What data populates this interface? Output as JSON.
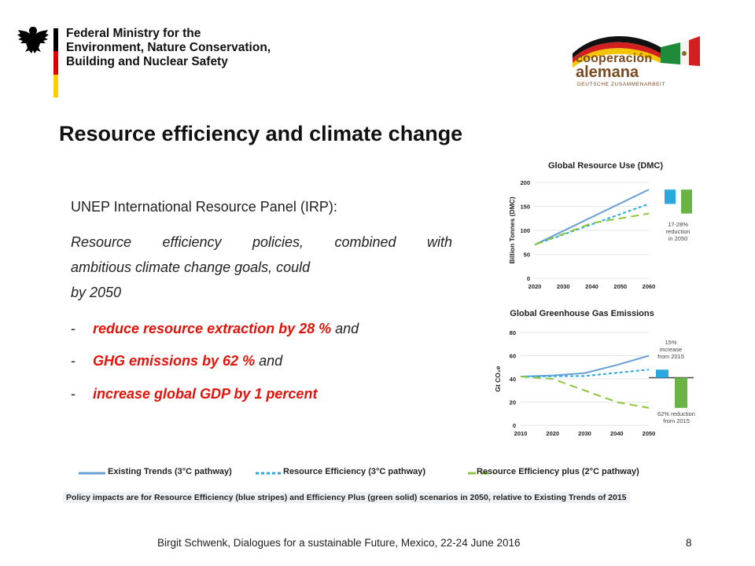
{
  "header": {
    "ministry_lines": [
      "Federal Ministry for the",
      "Environment, Nature Conservation,",
      "Building and Nuclear Safety"
    ],
    "coop_logo": {
      "line1": "cooperación",
      "line2": "alemana",
      "line3": "DEUTSCHE ZUSAMMENARBEIT"
    },
    "flag_colors": [
      "#000000",
      "#dd0000",
      "#ffce00"
    ]
  },
  "slide": {
    "title": "Resource efficiency and climate change",
    "intro": "UNEP International Resource Panel (IRP):",
    "para_line1_words": [
      "Resource",
      "efficiency",
      "policies,",
      "combined",
      "with"
    ],
    "para_line2": "ambitious climate change goals, could",
    "para_line3": "by 2050",
    "bullets": [
      {
        "dash": "-",
        "highlight": "reduce resource extraction by 28 %",
        "rest": " and"
      },
      {
        "dash": "-",
        "highlight": "GHG emissions by 62 %",
        "rest": " and"
      },
      {
        "dash": "-",
        "highlight": "increase global GDP by 1 percent",
        "rest": ""
      }
    ],
    "accent_color": "#e3120b"
  },
  "chart_data": [
    {
      "type": "line",
      "title": "Global Resource Use (DMC)",
      "ylabel": "Billion Tonnes (DMC)",
      "x_ticks": [
        "2020",
        "2030",
        "2040",
        "2050",
        "2060"
      ],
      "y_ticks": [
        "0",
        "50",
        "100",
        "150",
        "200"
      ],
      "ylim": [
        0,
        200
      ],
      "xlim": [
        2020,
        2060
      ],
      "series": [
        {
          "name": "Existing Trends (3°C pathway)",
          "color": "#6a9fd4",
          "style": "solid",
          "x": [
            2020,
            2060
          ],
          "y": [
            70,
            185
          ]
        },
        {
          "name": "Resource Efficiency (3°C pathway)",
          "color": "#2aa9e0",
          "style": "dotted",
          "x": [
            2020,
            2060
          ],
          "y": [
            70,
            155
          ]
        },
        {
          "name": "Resource Efficiency plus (2°C pathway)",
          "color": "#8dc63f",
          "style": "dashed",
          "x": [
            2020,
            2040,
            2060
          ],
          "y": [
            70,
            115,
            135
          ]
        }
      ],
      "bars": [
        {
          "color": "#2aa9e0",
          "top": 185,
          "bottom": 155
        },
        {
          "color": "#6ab446",
          "top": 185,
          "bottom": 135
        }
      ],
      "annotation": [
        "17-28%",
        "reduction",
        "in 2050"
      ]
    },
    {
      "type": "line",
      "title": "Global Greenhouse Gas Emissions",
      "ylabel": "Gt CO₂e",
      "x_ticks": [
        "2010",
        "2020",
        "2030",
        "2040",
        "2050"
      ],
      "y_ticks": [
        "0",
        "20",
        "40",
        "60",
        "80"
      ],
      "ylim": [
        0,
        80
      ],
      "xlim": [
        2010,
        2050
      ],
      "series": [
        {
          "name": "Existing Trends (3°C pathway)",
          "color": "#6a9fd4",
          "style": "solid",
          "x": [
            2010,
            2020,
            2030,
            2040,
            2050
          ],
          "y": [
            42,
            43,
            45,
            52,
            60
          ]
        },
        {
          "name": "Resource Efficiency (3°C pathway)",
          "color": "#2aa9e0",
          "style": "dotted",
          "x": [
            2010,
            2030,
            2050
          ],
          "y": [
            42,
            42.5,
            48
          ]
        },
        {
          "name": "Resource Efficiency plus (2°C pathway)",
          "color": "#8dc63f",
          "style": "dashed",
          "x": [
            2010,
            2020,
            2030,
            2040,
            2050
          ],
          "y": [
            42,
            40,
            30,
            20,
            15
          ]
        }
      ],
      "baseline": 41,
      "bars": [
        {
          "color": "#2aa9e0",
          "top": 48,
          "bottom": 41
        },
        {
          "color": "#6ab446",
          "top": 41,
          "bottom": 15
        }
      ],
      "annotations": [
        [
          "15%",
          "increase",
          "from 2015"
        ],
        [
          "62% reduction",
          "from 2015"
        ]
      ]
    }
  ],
  "legend": [
    {
      "label": "Existing Trends (3°C pathway)",
      "color": "#6a9fd4",
      "style": "solid"
    },
    {
      "label": "Resource Efficiency (3°C pathway)",
      "color": "#2aa9e0",
      "style": "dotted"
    },
    {
      "label": "Resource Efficiency plus (2°C pathway)",
      "color": "#8dc63f",
      "style": "dashed"
    }
  ],
  "note": "Policy impacts are for Resource Efficiency (blue stripes) and Efficiency Plus (green solid) scenarios in 2050, relative to Existing Trends of 2015",
  "footer": {
    "text": "Birgit Schwenk, Dialogues for a sustainable Future, Mexico, 22-24 June 2016",
    "page": "8"
  }
}
